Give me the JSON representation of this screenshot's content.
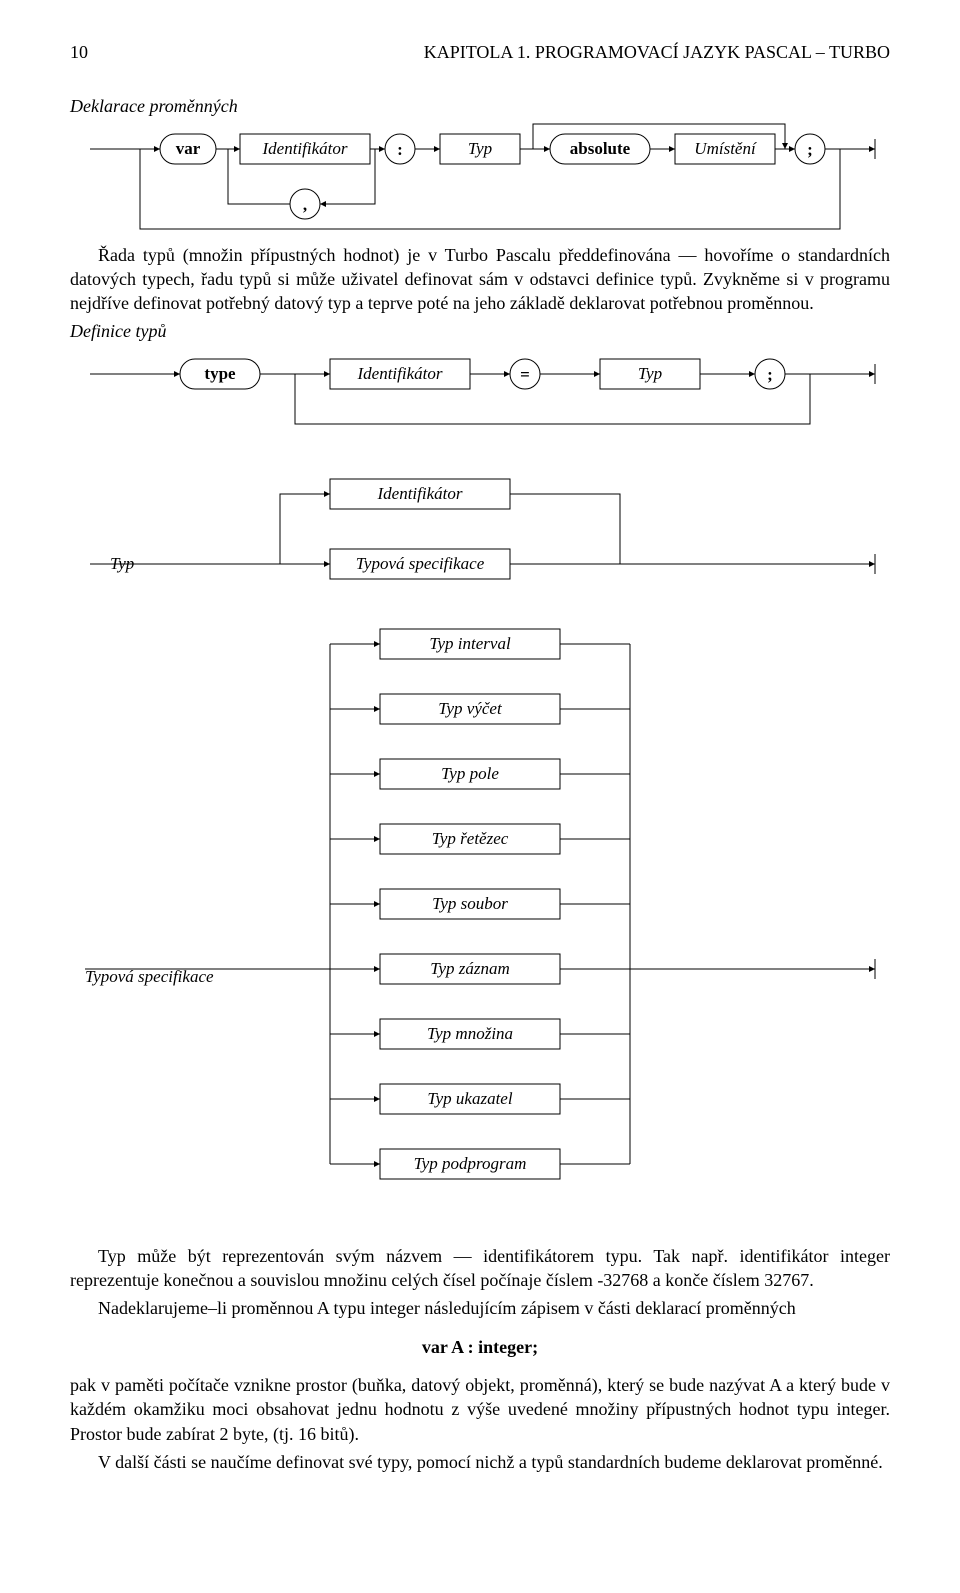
{
  "header": {
    "page_num": "10",
    "running": "KAPITOLA 1. PROGRAMOVACÍ JAZYK PASCAL – TURBO"
  },
  "diagram1": {
    "title": "Deklarace proměnných",
    "var_kw": "var",
    "ident": "Identifikátor",
    "colon": ":",
    "typ": "Typ",
    "absolute": "absolute",
    "umisteni": "Umístění",
    "semi": ";",
    "comma": ",",
    "stroke": "#000000",
    "line_w": 1
  },
  "para1": "Řada typů (množin přípustných hodnot) je v Turbo Pascalu předdefinována — hovoříme o standardních datových typech, řadu typů si může uživatel definovat sám v odstavci definice typů. Zvykněme si v programu nejdříve definovat potřebný datový typ a teprve poté na jeho základě deklarovat potřebnou proměnnou.",
  "diagram2": {
    "title": "Definice typů",
    "type_kw": "type",
    "ident": "Identifikátor",
    "eq": "=",
    "typ": "Typ",
    "semi": ";",
    "stroke": "#000000",
    "line_w": 1
  },
  "diagram3": {
    "title": "Typ",
    "ident": "Identifikátor",
    "typspec": "Typová specifikace",
    "stroke": "#000000",
    "line_w": 1
  },
  "diagram4": {
    "title": "Typová specifikace",
    "options": [
      "Typ interval",
      "Typ výčet",
      "Typ pole",
      "Typ řetězec",
      "Typ soubor",
      "Typ záznam",
      "Typ množina",
      "Typ ukazatel",
      "Typ podprogram"
    ],
    "stroke": "#000000",
    "line_w": 1
  },
  "para2a": "Typ může být reprezentován svým názvem — identifikátorem typu. Tak např. identifikátor integer reprezentuje konečnou a souvislou množinu celých čísel počínaje číslem -32768 a konče číslem 32767.",
  "para2b": "Nadeklarujeme–li proměnnou A typu integer následujícím zápisem v části deklarací proměnných",
  "code_line": "var A : integer;",
  "para3": "pak v paměti počítače vznikne prostor (buňka, datový objekt, proměnná), který se bude nazývat A a který bude v každém okamžiku moci obsahovat jednu hodnotu z výše uvedené množiny přípustných hodnot typu integer. Prostor bude zabírat 2 byte, (tj. 16 bitů).",
  "para4": "V další části se naučíme definovat své typy, pomocí nichž a typů standardních budeme deklarovat proměnné."
}
